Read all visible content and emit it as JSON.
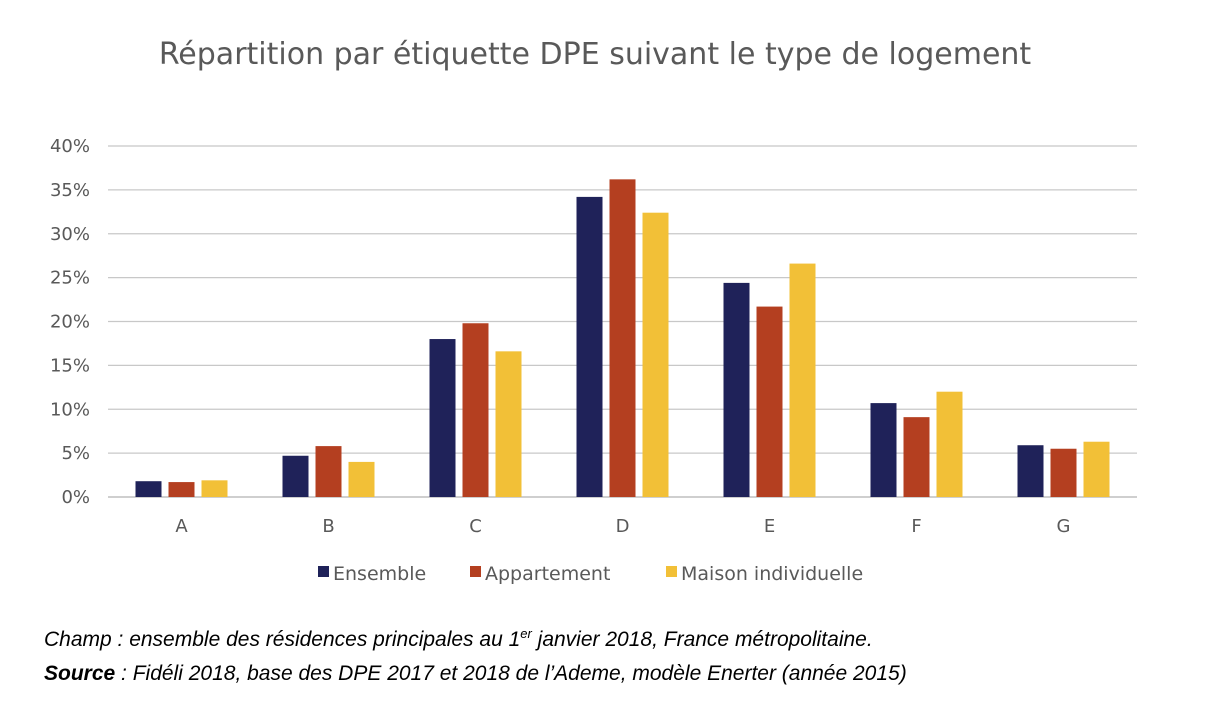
{
  "chart_data": {
    "type": "bar",
    "title": "Répartition par étiquette DPE suivant le type de logement",
    "xlabel": "",
    "ylabel": "",
    "ylim": [
      0,
      40
    ],
    "yticks": [
      "0%",
      "5%",
      "10%",
      "15%",
      "20%",
      "25%",
      "30%",
      "35%",
      "40%"
    ],
    "categories": [
      "A",
      "B",
      "C",
      "D",
      "E",
      "F",
      "G"
    ],
    "series": [
      {
        "name": "Ensemble",
        "color": "#1f2259",
        "values": [
          1.8,
          4.7,
          18.0,
          34.2,
          24.4,
          10.7,
          5.9
        ]
      },
      {
        "name": "Appartement",
        "color": "#b43f20",
        "values": [
          1.7,
          5.8,
          19.8,
          36.2,
          21.7,
          9.1,
          5.5
        ]
      },
      {
        "name": "Maison individuelle",
        "color": "#f2c037",
        "values": [
          1.9,
          4.0,
          16.6,
          32.4,
          26.6,
          12.0,
          6.3
        ]
      }
    ],
    "legend": "bottom"
  },
  "footnote": {
    "champ_pre": "Champ : ensemble des résidences principales au 1",
    "champ_sup": "er",
    "champ_post": " janvier 2018, France métropolitaine.",
    "source_label": "Source",
    "source_text": " : Fidéli 2018, base des DPE 2017 et 2018 de l’Ademe, modèle Enerter (année 2015)"
  }
}
